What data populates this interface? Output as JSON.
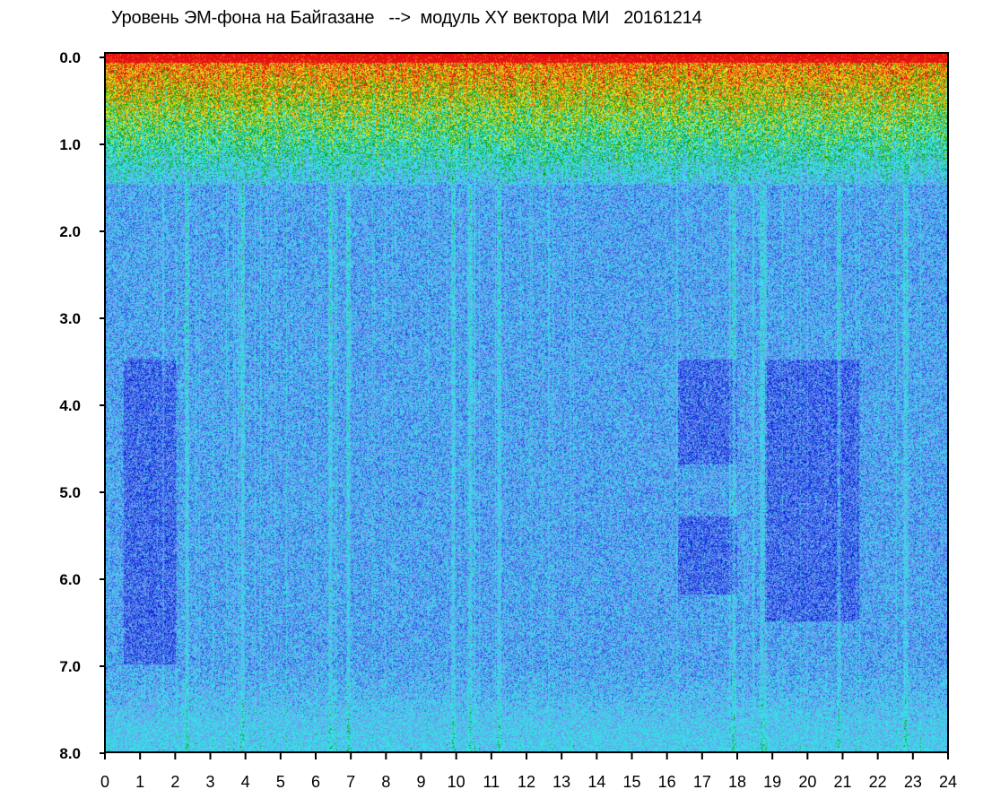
{
  "chart_data": {
    "type": "heatmap",
    "title": "Уровень ЭМ-фона на Байгазане   -->  модуль XY вектора МИ   20161214",
    "xlabel": "",
    "ylabel": "",
    "x_ticks": [
      "0",
      "1",
      "2",
      "3",
      "4",
      "5",
      "6",
      "7",
      "8",
      "9",
      "10",
      "11",
      "12",
      "13",
      "14",
      "15",
      "16",
      "17",
      "18",
      "19",
      "20",
      "21",
      "22",
      "23",
      "24"
    ],
    "y_ticks": [
      "0.0",
      "1.0",
      "2.0",
      "3.0",
      "4.0",
      "5.0",
      "6.0",
      "7.0",
      "8.0"
    ],
    "xlim": [
      0,
      24
    ],
    "ylim": [
      0,
      8
    ],
    "y_inverted": true,
    "colormap": [
      "#0b1fd6",
      "#2f55e4",
      "#6f97ee",
      "#3fd6ea",
      "#36e3e3",
      "#12a61b",
      "#e5e51a",
      "#f08a0a",
      "#e61212"
    ],
    "high_intensity_band": [
      0,
      1.5
    ],
    "dark_regions": [
      {
        "x": [
          0.5,
          2.0
        ],
        "y": [
          3.5,
          7.0
        ]
      },
      {
        "x": [
          16.3,
          18.0
        ],
        "y": [
          3.5,
          4.7
        ]
      },
      {
        "x": [
          16.3,
          18.0
        ],
        "y": [
          5.3,
          6.2
        ]
      },
      {
        "x": [
          18.8,
          21.5
        ],
        "y": [
          3.5,
          6.5
        ]
      }
    ],
    "vertical_streaks_x": [
      2.3,
      3.9,
      6.4,
      6.9,
      9.9,
      10.4,
      11.2,
      17.9,
      18.7,
      20.9,
      22.8
    ]
  }
}
